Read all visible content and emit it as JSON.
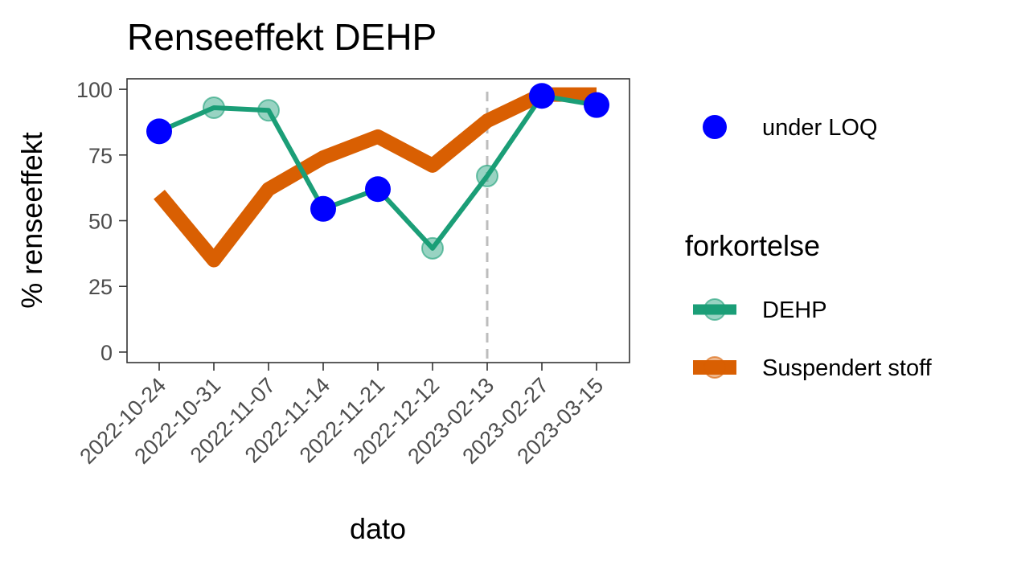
{
  "chart_data": {
    "type": "line",
    "title": "Renseeffekt DEHP",
    "xlabel": "dato",
    "ylabel": "% renseeffekt",
    "categories": [
      "2022-10-24",
      "2022-10-31",
      "2022-11-07",
      "2022-11-14",
      "2022-11-21",
      "2022-12-12",
      "2023-02-13",
      "2023-02-27",
      "2023-03-15"
    ],
    "ylim": [
      -4,
      104
    ],
    "yticks": [
      0,
      25,
      50,
      75,
      100
    ],
    "grid": false,
    "vline_at": "2023-02-13",
    "legend_title": "forkortelse",
    "series": [
      {
        "name": "DEHP",
        "color": "#1b9e77",
        "values": [
          84,
          93,
          92,
          54.5,
          62,
          39.5,
          67,
          97.5,
          94
        ]
      },
      {
        "name": "Suspendert stoff",
        "color": "#d95f02",
        "values": [
          60,
          35,
          62,
          74,
          82,
          71,
          88,
          98,
          98
        ]
      }
    ],
    "points_label": "under LOQ",
    "points_color": "#0000ff",
    "under_loq": [
      true,
      false,
      false,
      true,
      true,
      false,
      false,
      true,
      true
    ],
    "legend_position": "right"
  }
}
